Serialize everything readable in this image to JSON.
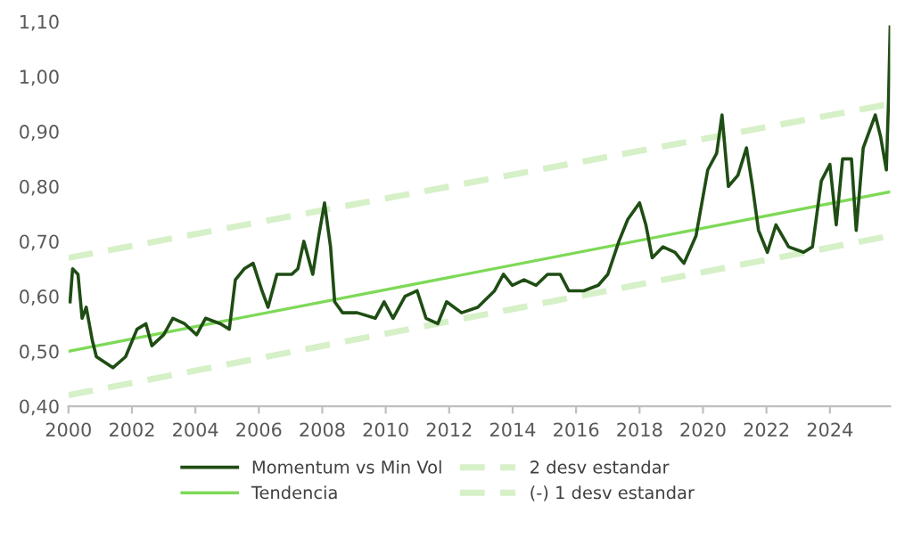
{
  "chart_data": {
    "type": "line",
    "legend": "bottom",
    "grid": false,
    "marker": "none",
    "xlim": [
      2000,
      2025.9
    ],
    "xticks": [
      2000,
      2002,
      2004,
      2006,
      2008,
      2010,
      2012,
      2014,
      2016,
      2018,
      2020,
      2022,
      2024
    ],
    "ylim": [
      0.4,
      1.1
    ],
    "yticks": [
      {
        "value": 0.4,
        "label": "0,40"
      },
      {
        "value": 0.5,
        "label": "0,50"
      },
      {
        "value": 0.6,
        "label": "0,60"
      },
      {
        "value": 0.7,
        "label": "0,70"
      },
      {
        "value": 0.8,
        "label": "0,80"
      },
      {
        "value": 0.9,
        "label": "0,90"
      },
      {
        "value": 1.0,
        "label": "1,00"
      },
      {
        "value": 1.1,
        "label": "1,10"
      }
    ],
    "series": [
      {
        "name": "Momentum vs Min Vol",
        "color": "#1f4d14",
        "line_style": "solid",
        "x": [
          2000.05,
          2000.13,
          2000.3,
          2000.43,
          2000.56,
          2000.75,
          2000.88,
          2001.4,
          2001.8,
          2002.16,
          2002.44,
          2002.63,
          2003.0,
          2003.29,
          2003.66,
          2004.04,
          2004.32,
          2004.79,
          2005.07,
          2005.26,
          2005.54,
          2005.82,
          2006.1,
          2006.29,
          2006.57,
          2007.04,
          2007.23,
          2007.42,
          2007.7,
          2007.89,
          2008.07,
          2008.26,
          2008.39,
          2008.64,
          2009.1,
          2009.67,
          2009.95,
          2010.23,
          2010.61,
          2010.99,
          2011.27,
          2011.64,
          2011.92,
          2012.39,
          2012.9,
          2013.43,
          2013.71,
          2013.99,
          2014.36,
          2014.74,
          2015.1,
          2015.5,
          2015.77,
          2016.24,
          2016.7,
          2017.0,
          2017.35,
          2017.63,
          2018.0,
          2018.2,
          2018.4,
          2018.74,
          2019.12,
          2019.4,
          2019.78,
          2020.15,
          2020.43,
          2020.6,
          2020.8,
          2021.1,
          2021.37,
          2021.56,
          2021.75,
          2022.03,
          2022.3,
          2022.7,
          2023.17,
          2023.45,
          2023.73,
          2024.0,
          2024.2,
          2024.4,
          2024.68,
          2024.83,
          2025.05,
          2025.43,
          2025.6,
          2025.78,
          2025.85,
          2025.9
        ],
        "values": [
          0.59,
          0.65,
          0.64,
          0.56,
          0.58,
          0.52,
          0.49,
          0.47,
          0.49,
          0.54,
          0.55,
          0.51,
          0.53,
          0.56,
          0.55,
          0.53,
          0.56,
          0.55,
          0.54,
          0.63,
          0.65,
          0.66,
          0.61,
          0.58,
          0.64,
          0.64,
          0.65,
          0.7,
          0.64,
          0.71,
          0.77,
          0.69,
          0.59,
          0.57,
          0.57,
          0.56,
          0.59,
          0.56,
          0.6,
          0.61,
          0.56,
          0.55,
          0.59,
          0.57,
          0.58,
          0.61,
          0.64,
          0.62,
          0.63,
          0.62,
          0.64,
          0.64,
          0.61,
          0.61,
          0.62,
          0.64,
          0.7,
          0.74,
          0.77,
          0.73,
          0.67,
          0.69,
          0.68,
          0.66,
          0.71,
          0.83,
          0.86,
          0.93,
          0.8,
          0.82,
          0.87,
          0.8,
          0.72,
          0.68,
          0.73,
          0.69,
          0.68,
          0.69,
          0.81,
          0.84,
          0.73,
          0.85,
          0.85,
          0.72,
          0.87,
          0.93,
          0.89,
          0.83,
          0.96,
          1.09
        ]
      },
      {
        "name": "Tendencia",
        "color": "#7ed957",
        "line_style": "solid",
        "x": [
          2000,
          2025.9
        ],
        "values": [
          0.5,
          0.79
        ]
      },
      {
        "name": "2 desv estandar",
        "color": "#d6f0c8",
        "line_style": "dashed",
        "x": [
          2000,
          2025.9
        ],
        "values": [
          0.67,
          0.95
        ]
      },
      {
        "name": "(-) 1 desv estandar",
        "color": "#d6f0c8",
        "line_style": "dashed",
        "x": [
          2000,
          2025.9
        ],
        "values": [
          0.42,
          0.71
        ]
      }
    ]
  }
}
